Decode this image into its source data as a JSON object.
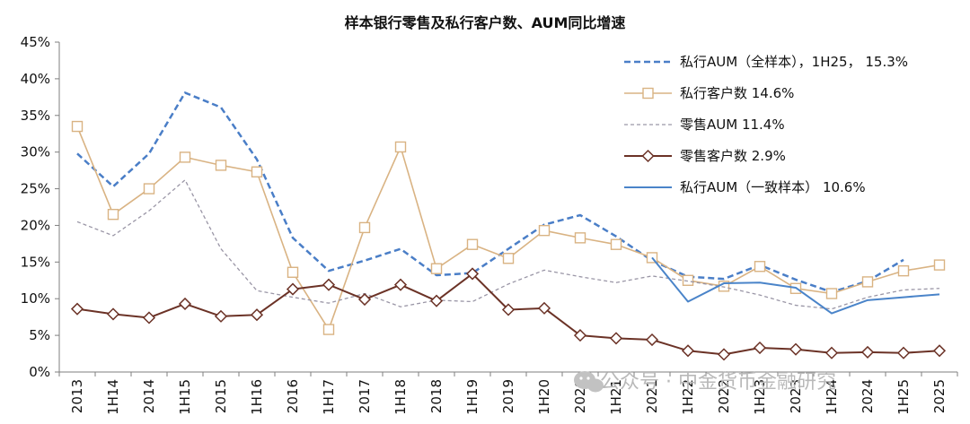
{
  "chart_data": {
    "type": "line",
    "title": "样本银行零售及私行客户数、AUM同比增速",
    "xlabel": "",
    "ylabel": "",
    "ylim": [
      0,
      45
    ],
    "yticks": [
      "0%",
      "5%",
      "10%",
      "15%",
      "20%",
      "25%",
      "30%",
      "35%",
      "40%",
      "45%"
    ],
    "categories": [
      "2013",
      "1H14",
      "2014",
      "1H15",
      "2015",
      "1H16",
      "2016",
      "1H17",
      "2017",
      "1H18",
      "2018",
      "1H19",
      "2019",
      "1H20",
      "2020",
      "1H21",
      "2021",
      "1H22",
      "2022",
      "1H23",
      "2023",
      "1H24",
      "2024",
      "1H25",
      "2025"
    ],
    "grid": false,
    "legend_position": "top-right",
    "series": [
      {
        "name": "私行AUM（全样本），1H25， 15.3%",
        "style": "dashed",
        "color": "#4a7ec7",
        "values": [
          29.8,
          25.3,
          29.8,
          38.1,
          36.1,
          29.0,
          18.3,
          13.8,
          15.2,
          16.8,
          13.2,
          13.5,
          16.8,
          20.1,
          21.4,
          18.5,
          15.2,
          13.0,
          12.7,
          14.6,
          12.6,
          10.9,
          12.4,
          15.3,
          null
        ]
      },
      {
        "name": "私行客户数 14.6%",
        "style": "solid-square",
        "color": "#d9b383",
        "values": [
          33.5,
          21.5,
          25.0,
          29.3,
          28.2,
          27.3,
          13.6,
          5.8,
          19.7,
          30.7,
          14.1,
          17.4,
          15.5,
          19.3,
          18.3,
          17.4,
          15.6,
          12.5,
          11.7,
          14.4,
          11.4,
          10.7,
          12.3,
          13.8,
          14.6
        ]
      },
      {
        "name": "零售AUM 11.4%",
        "style": "dotted",
        "color": "#9a96a6",
        "values": [
          20.5,
          18.6,
          22.0,
          26.2,
          16.8,
          11.1,
          10.2,
          9.4,
          10.7,
          8.9,
          9.8,
          9.6,
          12.0,
          13.9,
          13.0,
          12.2,
          13.1,
          12.4,
          11.6,
          10.5,
          9.1,
          8.6,
          10.2,
          11.2,
          11.4
        ]
      },
      {
        "name": "零售客户数 2.9%",
        "style": "solid-diamond",
        "color": "#6b3226",
        "values": [
          8.6,
          7.9,
          7.4,
          9.3,
          7.6,
          7.8,
          11.3,
          11.9,
          9.9,
          11.9,
          9.7,
          13.4,
          8.5,
          8.7,
          5.0,
          4.6,
          4.4,
          2.9,
          2.4,
          3.3,
          3.1,
          2.6,
          2.7,
          2.6,
          2.9
        ]
      },
      {
        "name": "私行AUM（一致样本） 10.6%",
        "style": "solid",
        "color": "#4a84c9",
        "values": [
          null,
          null,
          null,
          null,
          null,
          null,
          null,
          null,
          null,
          null,
          null,
          null,
          null,
          null,
          null,
          null,
          15.6,
          9.6,
          12.1,
          12.2,
          11.5,
          8.0,
          9.8,
          10.2,
          10.6
        ]
      }
    ]
  },
  "watermark": "公众号 · 中金货币金融研究"
}
